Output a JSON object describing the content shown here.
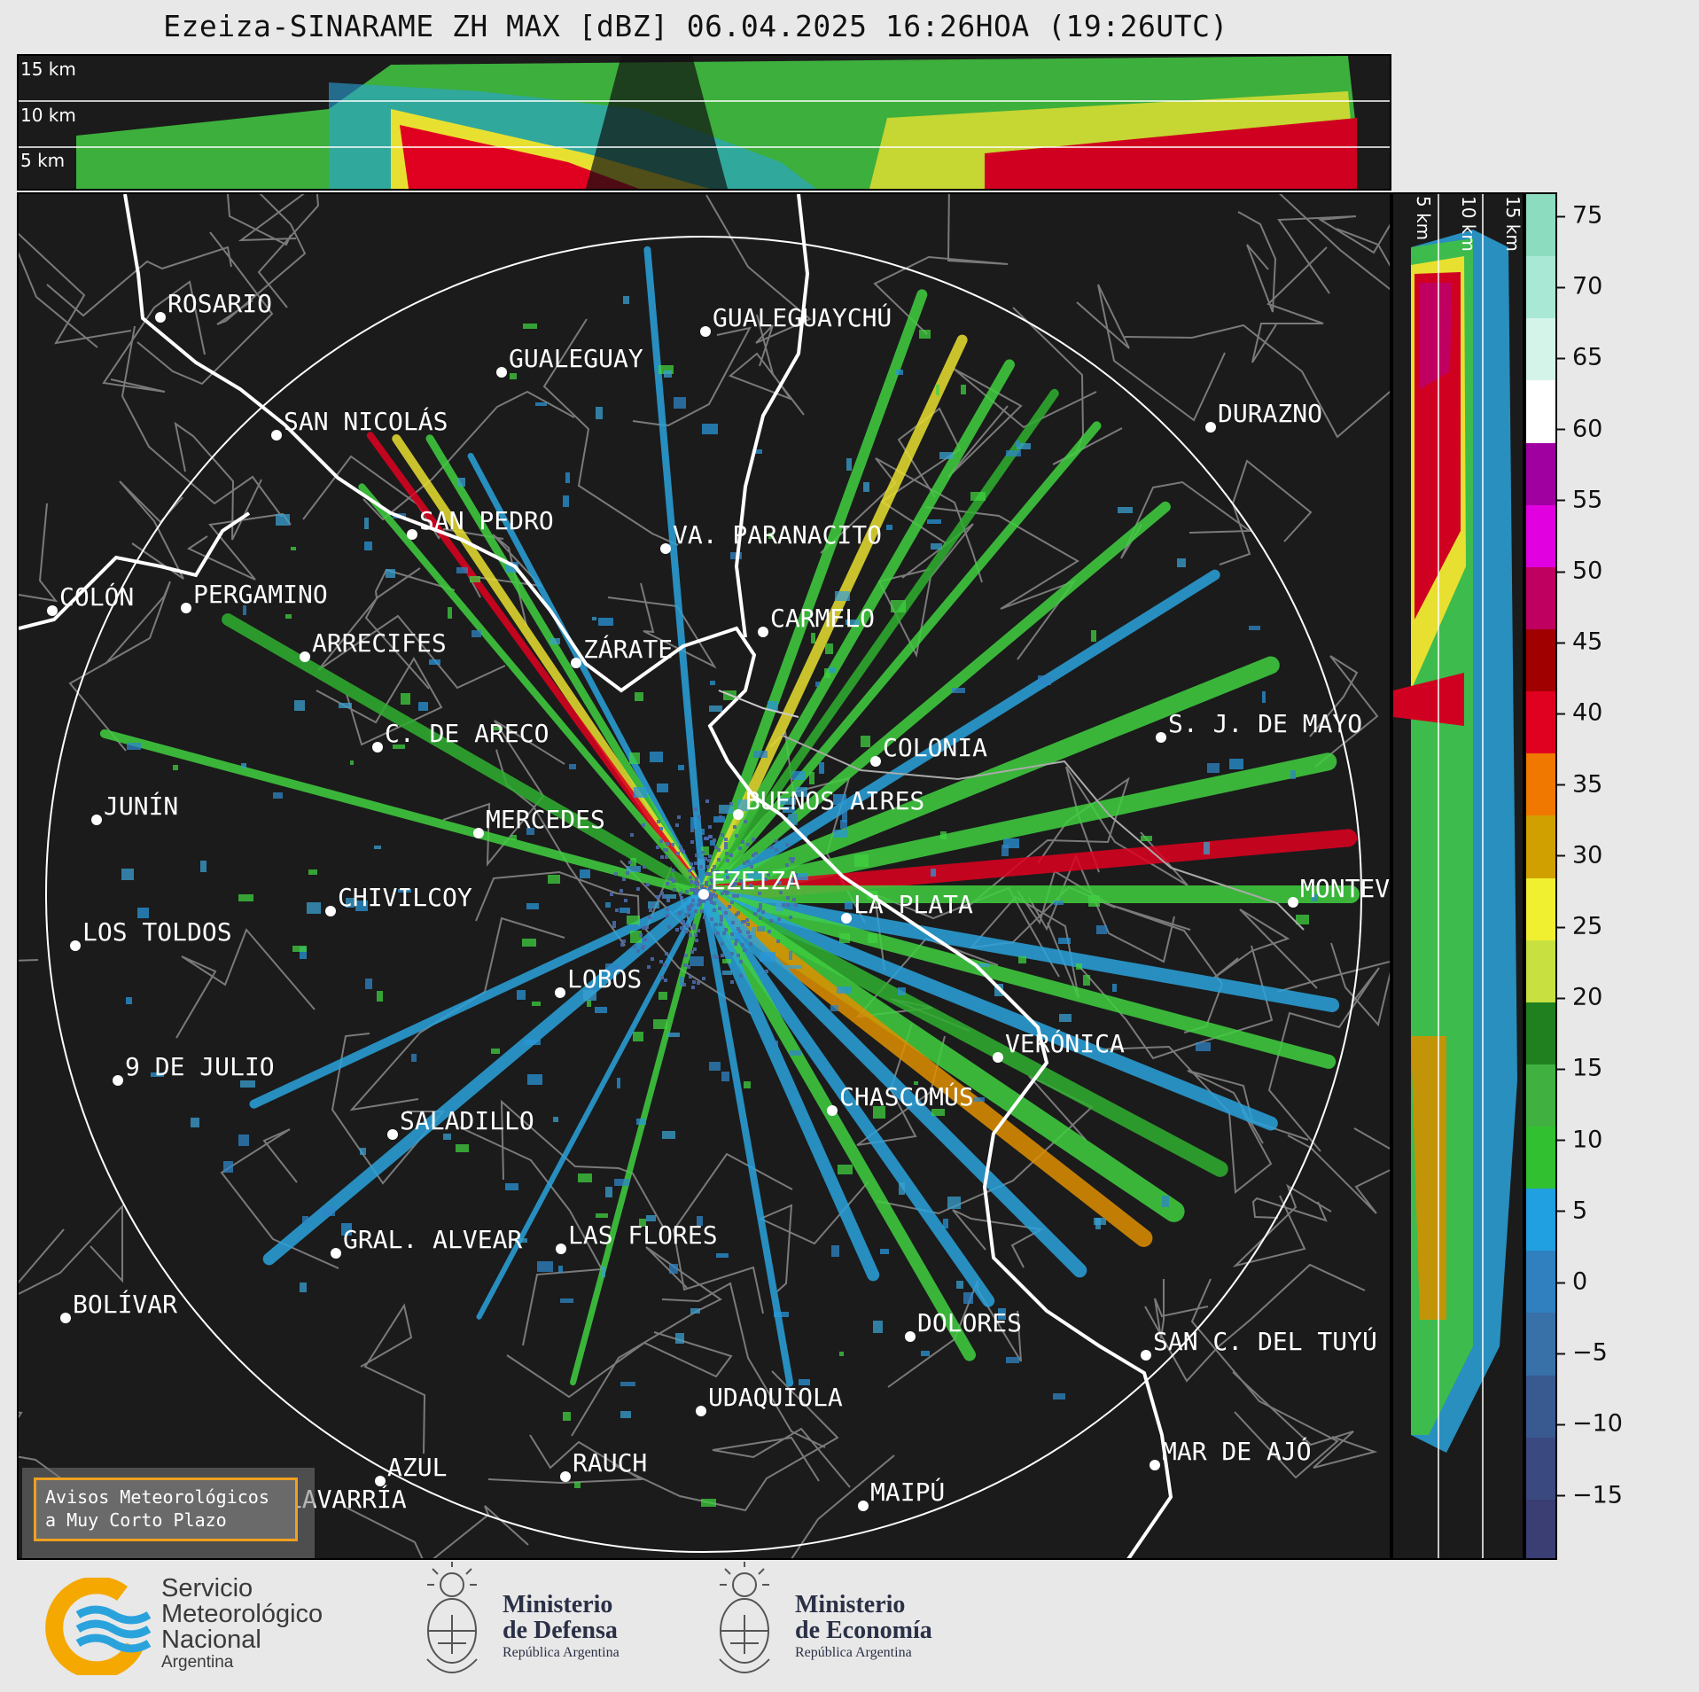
{
  "title": "Ezeiza-SINARAME ZH MAX [dBZ] 06.04.2025 16:26HOA (19:26UTC)",
  "height_labels": [
    "15 km",
    "10 km",
    "5 km"
  ],
  "colorbar": {
    "ticks": [
      "75",
      "70",
      "65",
      "60",
      "55",
      "50",
      "45",
      "40",
      "35",
      "30",
      "25",
      "20",
      "15",
      "10",
      "5",
      "0",
      "−5",
      "−10",
      "−15"
    ],
    "colors": [
      "#8cdcc0",
      "#a8e8d4",
      "#d4f4ea",
      "#ffffff",
      "#a000a0",
      "#e000e0",
      "#c00060",
      "#a00000",
      "#e00020",
      "#f07800",
      "#d0a000",
      "#f0f030",
      "#c8e040",
      "#208020",
      "#40b040",
      "#30c030",
      "#20a0e0",
      "#3080c0",
      "#3870a8",
      "#385a90",
      "#3a4a80",
      "#3a3e72"
    ]
  },
  "cities": [
    {
      "name": "ROSARIO"
    },
    {
      "name": "GUALEGUAYCHÚ"
    },
    {
      "name": "GUALEGUAY"
    },
    {
      "name": "SAN NICOLÁS"
    },
    {
      "name": "DURAZNO"
    },
    {
      "name": "SAN PEDRO"
    },
    {
      "name": "VA. PARANACITO"
    },
    {
      "name": "COLÓN"
    },
    {
      "name": "PERGAMINO"
    },
    {
      "name": "CARMELO"
    },
    {
      "name": "ARRECIFES"
    },
    {
      "name": "ZÁRATE"
    },
    {
      "name": "S. J. DE MAYO"
    },
    {
      "name": "C. DE ARECO"
    },
    {
      "name": "COLONIA"
    },
    {
      "name": "JUNÍN"
    },
    {
      "name": "BUENOS AIRES"
    },
    {
      "name": "MERCEDES"
    },
    {
      "name": "EZEIZA"
    },
    {
      "name": "MONTEV"
    },
    {
      "name": "CHIVILCOY"
    },
    {
      "name": "LA PLATA"
    },
    {
      "name": "LOS TOLDOS"
    },
    {
      "name": "LOBOS"
    },
    {
      "name": "VERÓNICA"
    },
    {
      "name": "9 DE JULIO"
    },
    {
      "name": "CHASCOMÚS"
    },
    {
      "name": "SALADILLO"
    },
    {
      "name": "GRAL. ALVEAR"
    },
    {
      "name": "LAS FLORES"
    },
    {
      "name": "BOLÍVAR"
    },
    {
      "name": "DOLORES"
    },
    {
      "name": "SAN C. DEL TUYÚ"
    },
    {
      "name": "UDAQUIOLA"
    },
    {
      "name": "MAR DE AJÓ"
    },
    {
      "name": "AZUL"
    },
    {
      "name": "RAUCH"
    },
    {
      "name": "MAIPÚ"
    },
    {
      "name": "OLAVARRÍA"
    }
  ],
  "avisos": {
    "line1": "Avisos Meteorológicos",
    "line2": "a Muy Corto Plazo"
  },
  "logos": {
    "smn": {
      "line1": "Servicio",
      "line2": "Meteorológico",
      "line3": "Nacional",
      "line4": "Argentina"
    },
    "defensa": {
      "line1": "Ministerio",
      "line2": "de Defensa",
      "line3": "República Argentina"
    },
    "economia": {
      "line1": "Ministerio",
      "line2": "de Economía",
      "line3": "República Argentina"
    }
  }
}
